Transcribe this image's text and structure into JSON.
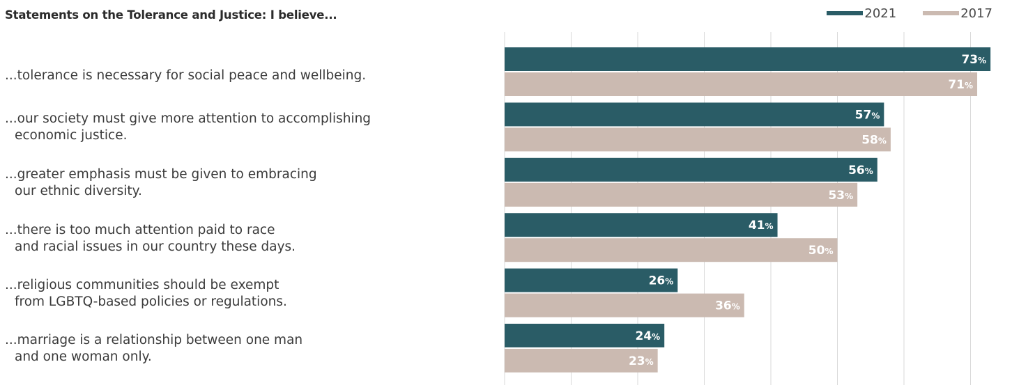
{
  "chart_data": {
    "type": "bar",
    "orientation": "horizontal",
    "title": "Statements on the Tolerance and Justice: I believe...",
    "categories": [
      [
        "...tolerance is necessary for social peace and wellbeing.",
        ""
      ],
      [
        "...our society must give more attention to accomplishing",
        "economic justice."
      ],
      [
        "...greater emphasis must be given to embracing",
        "our ethnic diversity."
      ],
      [
        "...there is too much attention paid to race",
        "and racial issues in our country these days."
      ],
      [
        "...religious communities should be exempt",
        "from LGBTQ-based policies or regulations."
      ],
      [
        "...marriage is a relationship between one man",
        "and one woman only."
      ]
    ],
    "series": [
      {
        "name": "2021",
        "color": "#2a5c66",
        "values": [
          73,
          57,
          56,
          41,
          26,
          24
        ]
      },
      {
        "name": "2017",
        "color": "#cbbab1",
        "values": [
          71,
          58,
          53,
          50,
          36,
          23
        ]
      }
    ],
    "value_suffix": "%",
    "xlim": [
      0,
      74
    ],
    "grid": true,
    "legend_position": "top-right"
  }
}
